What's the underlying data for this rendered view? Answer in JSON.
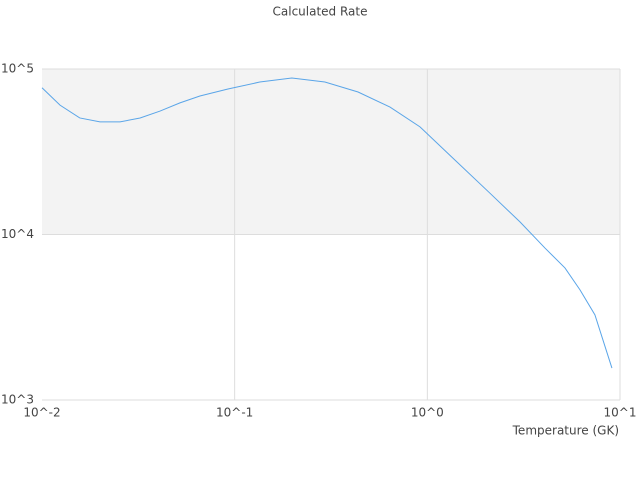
{
  "chart_data": {
    "type": "line",
    "title": "Calculated Rate",
    "x_label": "Temperature (GK)",
    "log_x": true,
    "log_y": true,
    "grid": true,
    "x": [
      0.01,
      0.0124,
      0.0157,
      0.02,
      0.0254,
      0.0323,
      0.041,
      0.052,
      0.066,
      0.0923,
      0.135,
      0.198,
      0.294,
      0.437,
      0.64,
      0.916,
      1.39,
      2.11,
      3.03,
      4.08,
      5.18,
      6.2,
      7.41,
      9.08
    ],
    "series": [
      {
        "color": "#5aa5e8",
        "values": [
          77000,
          60500,
          50600,
          47900,
          47900,
          50600,
          55700,
          62400,
          68700,
          75700,
          83400,
          88300,
          83400,
          72600,
          58900,
          44700,
          28200,
          17800,
          11900,
          8280,
          6280,
          4630,
          3270,
          1560
        ]
      }
    ],
    "xlim": [
      0.01,
      10
    ],
    "ylim": [
      1000,
      100000
    ],
    "xticks": [
      {
        "value": 0.01,
        "label": "10^-2"
      },
      {
        "value": 0.1,
        "label": "10^-1"
      },
      {
        "value": 1,
        "label": "10^0"
      },
      {
        "value": 10,
        "label": "10^1"
      }
    ],
    "yticks": [
      {
        "value": 1000,
        "label": "10^3"
      },
      {
        "value": 10000,
        "label": "10^4"
      },
      {
        "value": 100000,
        "label": "10^5"
      }
    ]
  }
}
